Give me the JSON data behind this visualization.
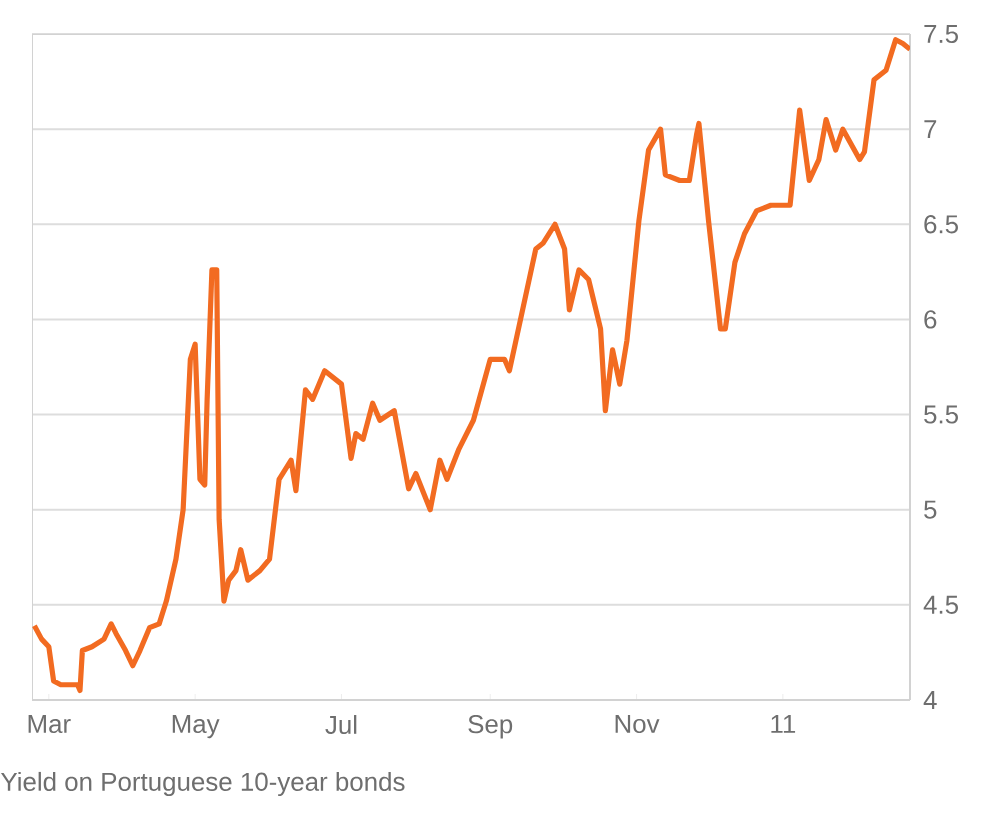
{
  "chart_data": {
    "type": "line",
    "annotations": [
      "Yield on Portuguese 10-year bonds"
    ],
    "x": [
      "2010-02-23",
      "2010-02-26",
      "2010-03-01",
      "2010-03-03",
      "2010-03-06",
      "2010-03-13",
      "2010-03-14",
      "2010-03-15",
      "2010-03-19",
      "2010-03-24",
      "2010-03-27",
      "2010-03-29",
      "2010-04-02",
      "2010-04-05",
      "2010-04-08",
      "2010-04-12",
      "2010-04-16",
      "2010-04-19",
      "2010-04-23",
      "2010-04-26",
      "2010-04-29",
      "2010-05-01",
      "2010-05-03",
      "2010-05-05",
      "2010-05-06",
      "2010-05-08",
      "2010-05-10",
      "2010-05-11",
      "2010-05-13",
      "2010-05-15",
      "2010-05-18",
      "2010-05-20",
      "2010-05-23",
      "2010-05-28",
      "2010-06-01",
      "2010-06-05",
      "2010-06-10",
      "2010-06-12",
      "2010-06-16",
      "2010-06-19",
      "2010-06-24",
      "2010-07-01",
      "2010-07-05",
      "2010-07-07",
      "2010-07-10",
      "2010-07-14",
      "2010-07-17",
      "2010-07-23",
      "2010-07-29",
      "2010-08-01",
      "2010-08-07",
      "2010-08-11",
      "2010-08-14",
      "2010-08-19",
      "2010-08-25",
      "2010-09-01",
      "2010-09-07",
      "2010-09-09",
      "2010-09-20",
      "2010-09-23",
      "2010-09-28",
      "2010-10-02",
      "2010-10-04",
      "2010-10-08",
      "2010-10-12",
      "2010-10-17",
      "2010-10-19",
      "2010-10-22",
      "2010-10-25",
      "2010-10-28",
      "2010-11-02",
      "2010-11-06",
      "2010-11-11",
      "2010-11-13",
      "2010-11-19",
      "2010-11-23",
      "2010-11-26",
      "2010-11-27",
      "2010-12-01",
      "2010-12-06",
      "2010-12-08",
      "2010-12-12",
      "2010-12-16",
      "2010-12-21",
      "2010-12-27",
      "2011-01-04",
      "2011-01-08",
      "2011-01-12",
      "2011-01-16",
      "2011-01-19",
      "2011-01-23",
      "2011-01-26",
      "2011-02-02",
      "2011-02-04",
      "2011-02-08",
      "2011-02-13",
      "2011-02-17",
      "2011-02-20",
      "2011-02-23"
    ],
    "series": [
      {
        "color": "#f26b21",
        "values": [
          4.39,
          4.32,
          4.28,
          4.1,
          4.08,
          4.08,
          4.05,
          4.26,
          4.28,
          4.32,
          4.4,
          4.35,
          4.26,
          4.18,
          4.26,
          4.38,
          4.4,
          4.52,
          4.74,
          5.0,
          5.79,
          5.87,
          5.16,
          5.13,
          5.58,
          6.26,
          6.26,
          4.95,
          4.52,
          4.63,
          4.68,
          4.79,
          4.63,
          4.68,
          4.74,
          5.16,
          5.26,
          5.1,
          5.63,
          5.58,
          5.73,
          5.66,
          5.27,
          5.4,
          5.37,
          5.56,
          5.47,
          5.52,
          5.11,
          5.19,
          5.0,
          5.26,
          5.16,
          5.32,
          5.47,
          5.79,
          5.79,
          5.73,
          6.37,
          6.4,
          6.5,
          6.37,
          6.05,
          6.26,
          6.21,
          5.95,
          5.52,
          5.84,
          5.66,
          5.89,
          6.52,
          6.89,
          7.0,
          6.76,
          6.73,
          6.73,
          6.97,
          7.03,
          6.52,
          5.95,
          5.95,
          6.3,
          6.45,
          6.57,
          6.6,
          6.6,
          7.1,
          6.73,
          6.84,
          7.05,
          6.89,
          7.0,
          6.84,
          6.88,
          7.26,
          7.31,
          7.47,
          7.45,
          7.42
        ]
      }
    ],
    "xlim": [
      "2010-02-22",
      "2011-02-23"
    ],
    "xticks": [
      {
        "value": "2010-03-01",
        "label": "Mar"
      },
      {
        "value": "2010-05-01",
        "label": "May"
      },
      {
        "value": "2010-07-01",
        "label": "Jul"
      },
      {
        "value": "2010-09-01",
        "label": "Sep"
      },
      {
        "value": "2010-11-01",
        "label": "Nov"
      },
      {
        "value": "2011-01-01",
        "label": "11"
      }
    ],
    "ylim": [
      4,
      7.5
    ],
    "yticks": [
      4,
      4.5,
      5,
      5.5,
      6,
      6.5,
      7,
      7.5
    ],
    "grid": "y",
    "marker": "none",
    "line_style": "solid"
  }
}
